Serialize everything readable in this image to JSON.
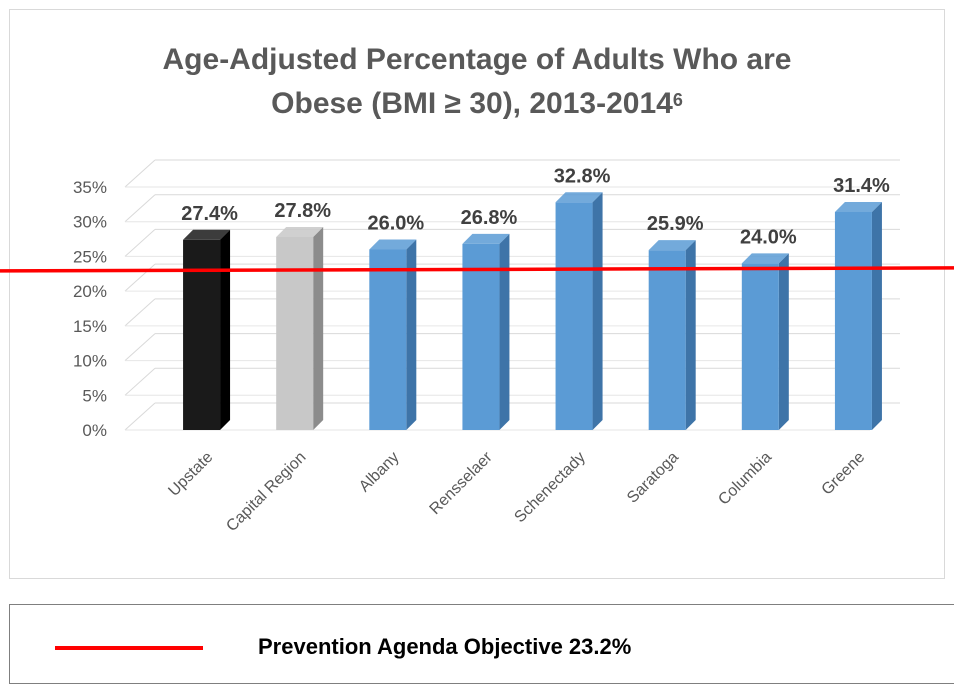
{
  "chart_data": {
    "type": "bar",
    "title_line1": "Age-Adjusted Percentage of Adults Who are",
    "title_line2": "Obese (BMI ≥ 30), 2013-2014",
    "title_superscript": "6",
    "categories": [
      "Upstate",
      "Capital Region",
      "Albany",
      "Rensselaer",
      "Schenectady",
      "Saratoga",
      "Columbia",
      "Greene"
    ],
    "values": [
      27.4,
      27.8,
      26.0,
      26.8,
      32.8,
      25.9,
      24.0,
      31.4
    ],
    "data_labels": [
      "27.4%",
      "27.8%",
      "26.0%",
      "26.8%",
      "32.8%",
      "25.9%",
      "24.0%",
      "31.4%"
    ],
    "bar_colors": [
      "#1a1a1a",
      "#c8c8c8",
      "#5b9bd5",
      "#5b9bd5",
      "#5b9bd5",
      "#5b9bd5",
      "#5b9bd5",
      "#5b9bd5"
    ],
    "bar_side_colors": [
      "#000000",
      "#8c8c8c",
      "#3e74a8",
      "#3e74a8",
      "#3e74a8",
      "#3e74a8",
      "#3e74a8",
      "#3e74a8"
    ],
    "y_ticks": [
      "0%",
      "5%",
      "10%",
      "15%",
      "20%",
      "25%",
      "30%",
      "35%"
    ],
    "ylim": [
      0,
      35
    ],
    "grid": true,
    "reference_line": {
      "value": 23.2,
      "color": "#ff0000"
    }
  },
  "legend": {
    "label": "Prevention Agenda Objective 23.2%",
    "line_color": "#ff0000"
  }
}
